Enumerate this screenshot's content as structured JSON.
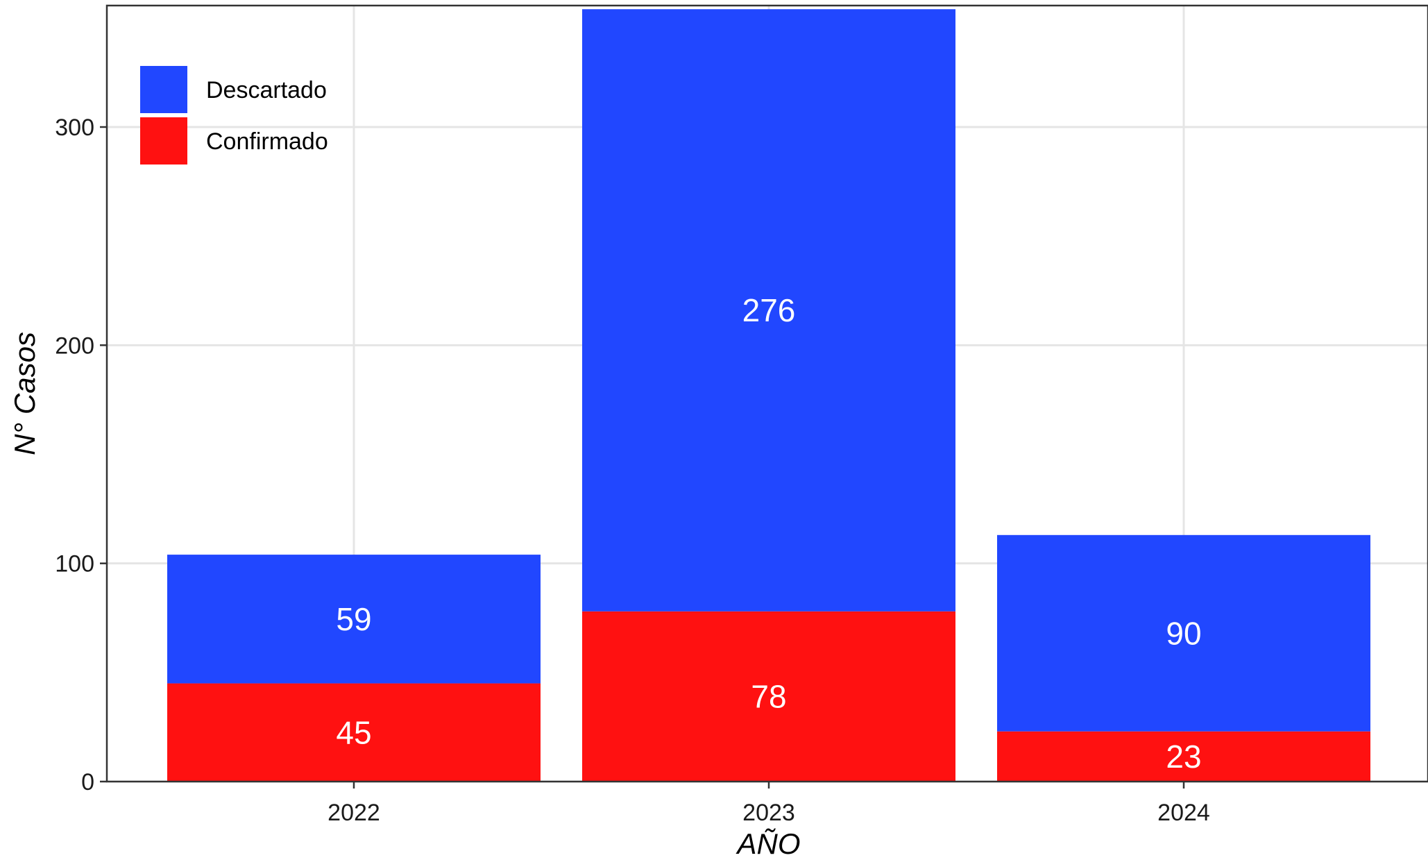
{
  "chart_data": {
    "type": "bar",
    "stacked": true,
    "categories": [
      "2022",
      "2023",
      "2024"
    ],
    "series": [
      {
        "name": "Confirmado",
        "values": [
          45,
          78,
          23
        ],
        "color": "#FF1111"
      },
      {
        "name": "Descartado",
        "values": [
          59,
          276,
          90
        ],
        "color": "#2147FF"
      }
    ],
    "legend_order": [
      "Descartado",
      "Confirmado"
    ],
    "legend_position": "top-left",
    "xlabel": "AÑO",
    "ylabel": "N° Casos",
    "ylim": [
      0,
      355
    ],
    "yticks": [
      0,
      100,
      200,
      300
    ],
    "grid": true,
    "show_value_labels": true
  }
}
